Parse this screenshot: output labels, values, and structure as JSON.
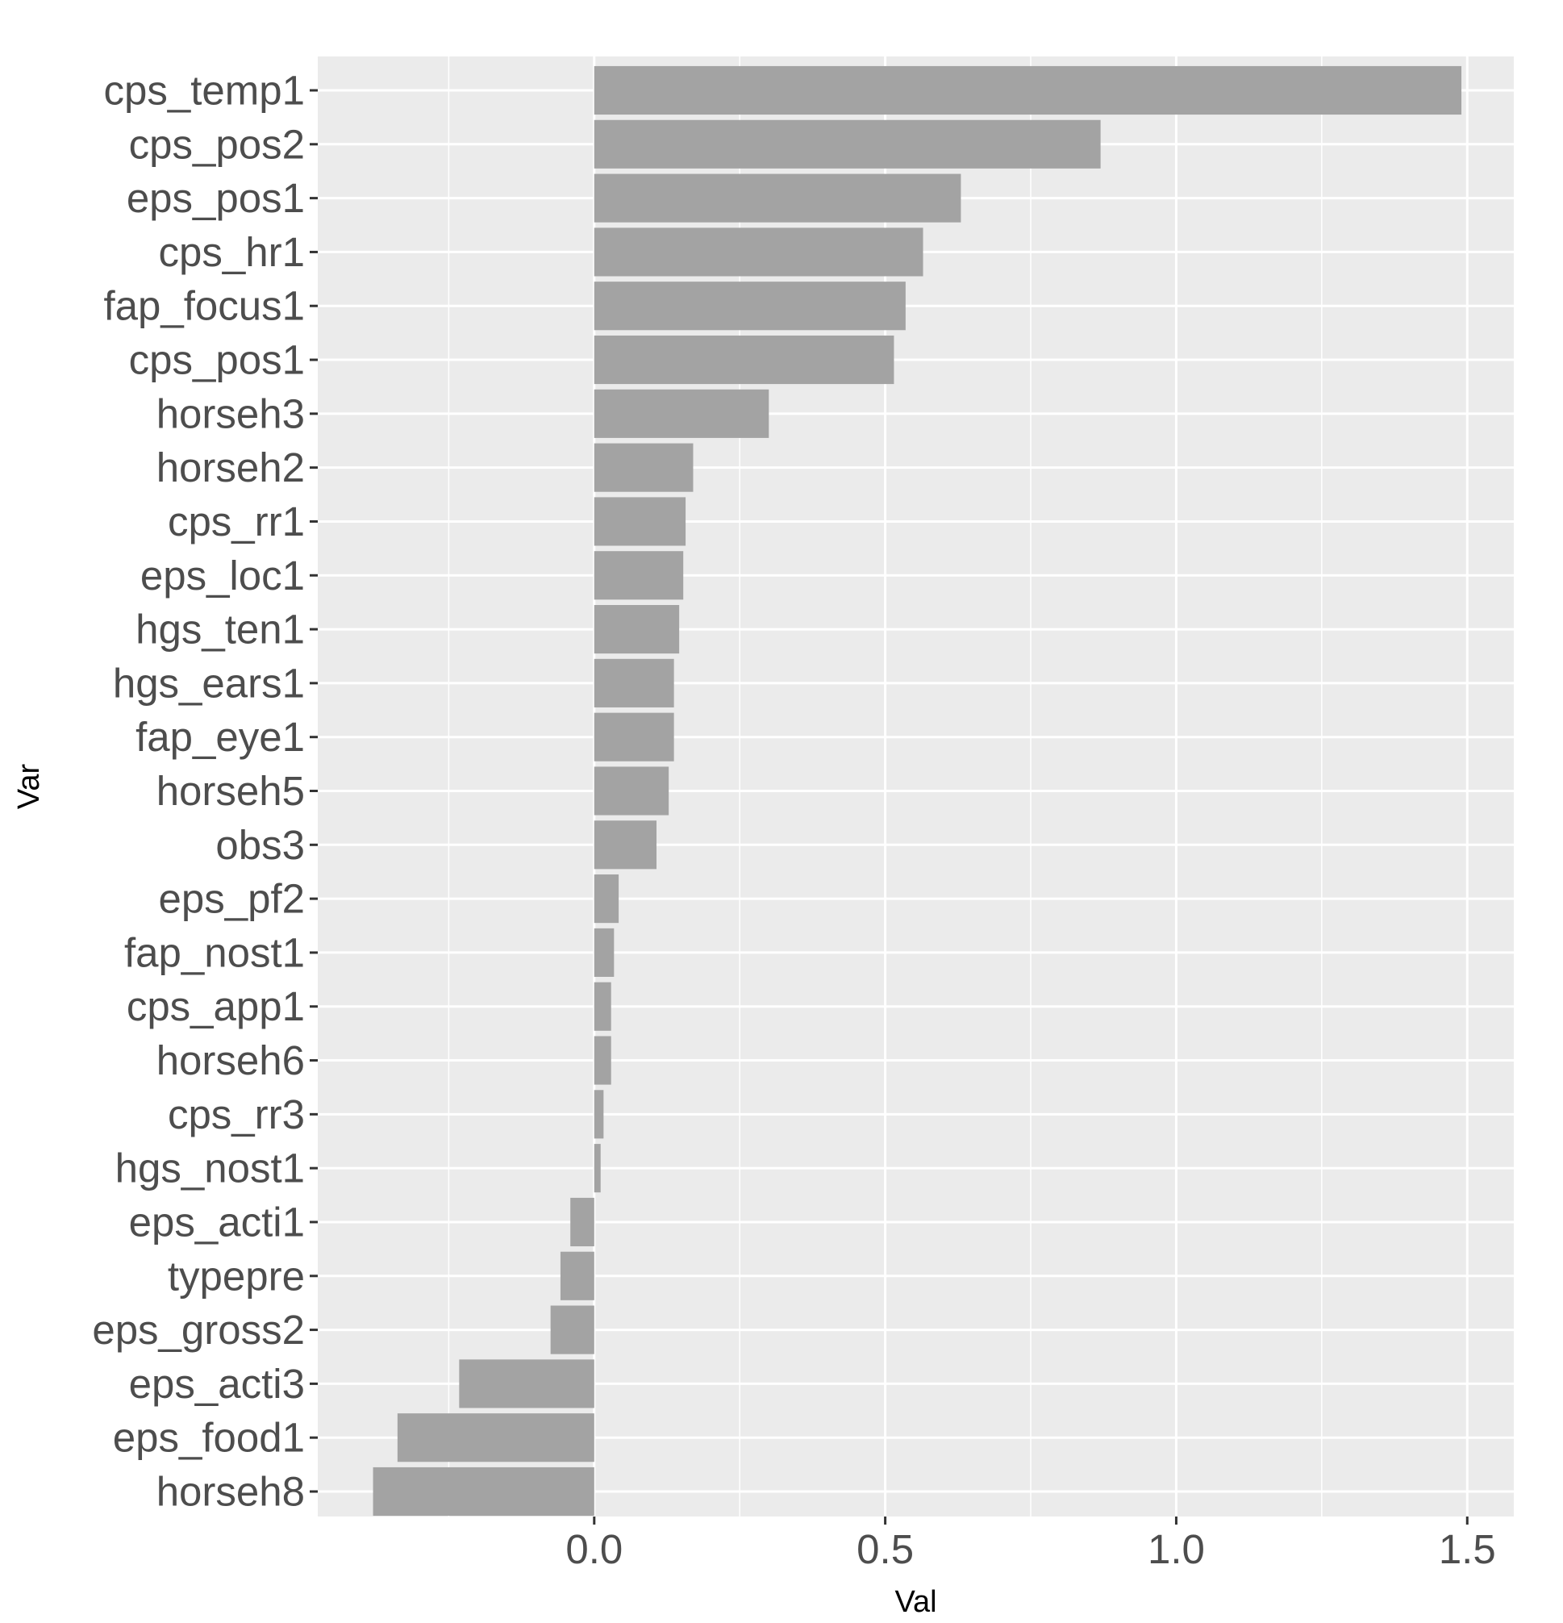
{
  "chart_data": {
    "type": "bar",
    "orientation": "horizontal",
    "xlabel": "Val",
    "ylabel": "Var",
    "xlim": [
      -0.475,
      1.58
    ],
    "xticks": [
      0.0,
      0.5,
      1.0,
      1.5
    ],
    "xtick_labels": [
      "0.0",
      "0.5",
      "1.0",
      "1.5"
    ],
    "grid": true,
    "colors": {
      "panel": "#ebebeb",
      "grid": "#ffffff",
      "bar": "#a3a3a3",
      "tick_text": "#4d4d4d",
      "title_text": "#000000"
    },
    "categories": [
      "cps_temp1",
      "cps_pos2",
      "eps_pos1",
      "cps_hr1",
      "fap_focus1",
      "cps_pos1",
      "horseh3",
      "horseh2",
      "cps_rr1",
      "eps_loc1",
      "hgs_ten1",
      "hgs_ears1",
      "fap_eye1",
      "horseh5",
      "obs3",
      "eps_pf2",
      "fap_nost1",
      "cps_app1",
      "horseh6",
      "cps_rr3",
      "hgs_nost1",
      "eps_acti1",
      "typepre",
      "eps_gross2",
      "eps_acti3",
      "eps_food1",
      "horseh8"
    ],
    "values": [
      1.49,
      0.87,
      0.63,
      0.565,
      0.535,
      0.515,
      0.3,
      0.17,
      0.157,
      0.153,
      0.146,
      0.137,
      0.137,
      0.128,
      0.107,
      0.042,
      0.034,
      0.029,
      0.029,
      0.016,
      0.011,
      -0.041,
      -0.058,
      -0.075,
      -0.232,
      -0.338,
      -0.38
    ]
  }
}
